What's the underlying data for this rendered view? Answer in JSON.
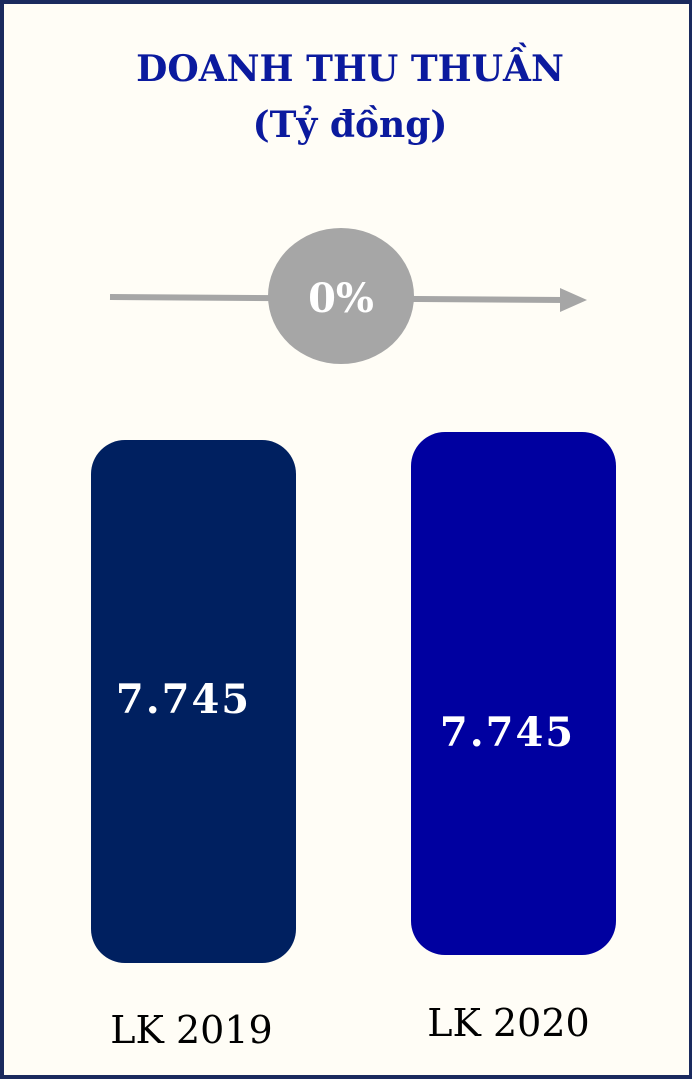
{
  "chart_data": {
    "type": "bar",
    "title": "DOANH THU THUẦN",
    "subtitle": "(Tỷ đồng)",
    "categories": [
      "LK 2019",
      "LK 2020"
    ],
    "values": [
      7745,
      7745
    ],
    "value_labels": [
      "7.745",
      "7.745"
    ],
    "ylim": [
      0,
      7745
    ],
    "grid": false,
    "legend": "none",
    "growth_label": "0%",
    "colors": {
      "bar_2019": "#002060",
      "bar_2020": "#0000a0",
      "bar_text": "#ffffff",
      "growth_circle": "#a6a6a6",
      "arrow": "#a6a6a6",
      "title": "#0b1a9e",
      "category_text": "#000000"
    }
  }
}
